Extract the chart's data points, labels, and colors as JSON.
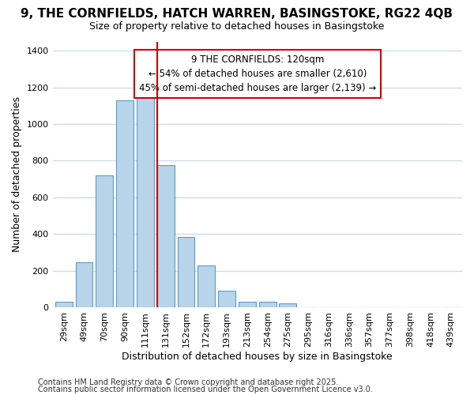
{
  "title1": "9, THE CORNFIELDS, HATCH WARREN, BASINGSTOKE, RG22 4QB",
  "title2": "Size of property relative to detached houses in Basingstoke",
  "xlabel": "Distribution of detached houses by size in Basingstoke",
  "ylabel": "Number of detached properties",
  "categories": [
    "29sqm",
    "49sqm",
    "70sqm",
    "90sqm",
    "111sqm",
    "131sqm",
    "152sqm",
    "172sqm",
    "193sqm",
    "213sqm",
    "254sqm",
    "275sqm",
    "295sqm",
    "316sqm",
    "336sqm",
    "357sqm",
    "377sqm",
    "398sqm",
    "418sqm",
    "439sqm"
  ],
  "values": [
    30,
    245,
    720,
    1130,
    1145,
    775,
    385,
    230,
    90,
    30,
    30,
    20,
    0,
    0,
    0,
    0,
    0,
    0,
    0,
    0
  ],
  "red_line_index": 5,
  "bar_color_face": "#b8d4e8",
  "bar_color_edge": "#5b9bd5",
  "highlight_line_color": "#cc0000",
  "annotation_box_color": "#cc0000",
  "annotation_text_line1": "9 THE CORNFIELDS: 120sqm",
  "annotation_text_line2": "← 54% of detached houses are smaller (2,610)",
  "annotation_text_line3": "45% of semi-detached houses are larger (2,139) →",
  "ylim": [
    0,
    1450
  ],
  "yticks": [
    0,
    200,
    400,
    600,
    800,
    1000,
    1200,
    1400
  ],
  "footnote1": "Contains HM Land Registry data © Crown copyright and database right 2025.",
  "footnote2": "Contains public sector information licensed under the Open Government Licence v3.0.",
  "bg_color": "#ffffff",
  "plot_bg_color": "#ffffff",
  "grid_color": "#d0dce8",
  "title1_fontsize": 11,
  "title2_fontsize": 9,
  "label_fontsize": 9,
  "tick_fontsize": 8,
  "annot_fontsize": 8.5,
  "footnote_fontsize": 7
}
